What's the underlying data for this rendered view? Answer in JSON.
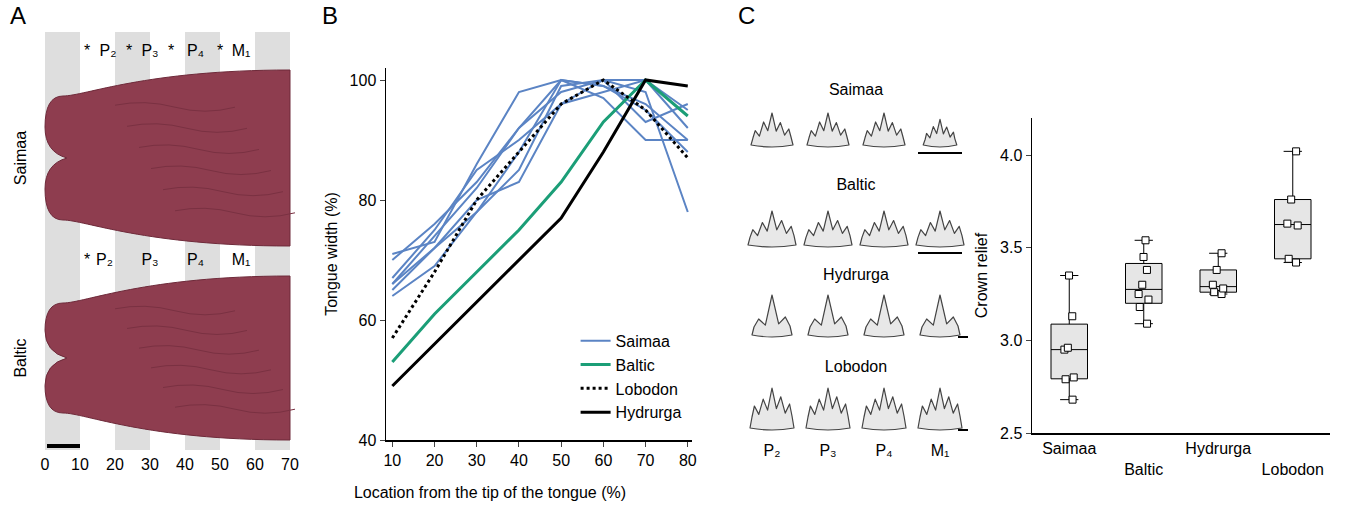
{
  "panel_a": {
    "panel": "A",
    "rows": [
      "Saimaa",
      "Baltic"
    ],
    "xlim": [
      0,
      70
    ],
    "xticks": [
      0,
      10,
      20,
      30,
      40,
      50,
      60,
      70
    ],
    "annotations": {
      "top": [
        {
          "text": "*",
          "x": 12
        },
        {
          "text": "P₂",
          "x": 18
        },
        {
          "text": "*",
          "x": 24
        },
        {
          "text": "P₃",
          "x": 30
        },
        {
          "text": "*",
          "x": 36
        },
        {
          "text": "P₄",
          "x": 43
        },
        {
          "text": "*",
          "x": 50
        },
        {
          "text": "M₁",
          "x": 56
        }
      ],
      "middle": [
        {
          "text": "*",
          "x": 12
        },
        {
          "text": "P₂",
          "x": 17
        },
        {
          "text": "P₃",
          "x": 30
        },
        {
          "text": "P₄",
          "x": 43
        },
        {
          "text": "M₁",
          "x": 56
        }
      ]
    }
  },
  "x_label": "Location from the tip of the tongue (%)",
  "chart_data": [
    {
      "panel": "B",
      "type": "line",
      "x": [
        10,
        20,
        30,
        40,
        50,
        60,
        70,
        80
      ],
      "xlim": [
        8.5,
        81
      ],
      "xticks": [
        10,
        20,
        30,
        40,
        50,
        60,
        70,
        80
      ],
      "ylim": [
        40,
        102
      ],
      "yticks": [
        40,
        60,
        80,
        100
      ],
      "ylabel": "Tongue width (%)",
      "grid": false,
      "legend": "bottom right",
      "series": [
        {
          "name": "Saimaa",
          "color": "#5b84c4",
          "line_style": "solid",
          "values": [
            71,
            73,
            86,
            98,
            100,
            99,
            96,
            90
          ]
        },
        {
          "name": "Saimaa",
          "color": "#5b84c4",
          "line_style": "solid",
          "values": [
            66,
            74,
            82,
            92,
            100,
            97,
            90,
            90
          ]
        },
        {
          "name": "Saimaa",
          "color": "#5b84c4",
          "line_style": "solid",
          "values": [
            64,
            69,
            78,
            85,
            99,
            100,
            98,
            78
          ]
        },
        {
          "name": "Saimaa",
          "color": "#5b84c4",
          "line_style": "solid",
          "values": [
            65,
            72,
            80,
            83,
            96,
            100,
            100,
            92
          ]
        },
        {
          "name": "Saimaa",
          "color": "#5b84c4",
          "line_style": "solid",
          "values": [
            67,
            75,
            85,
            90,
            96,
            98,
            100,
            95
          ]
        },
        {
          "name": "Saimaa",
          "color": "#5b84c4",
          "line_style": "solid",
          "values": [
            66,
            72,
            78,
            88,
            100,
            99,
            95,
            88
          ]
        },
        {
          "name": "Saimaa",
          "color": "#5b84c4",
          "line_style": "solid",
          "values": [
            70,
            76,
            83,
            92,
            98,
            100,
            93,
            96
          ]
        },
        {
          "name": "Baltic",
          "color": "#1b9e77",
          "line_style": "solid",
          "values": [
            53,
            61,
            68,
            75,
            83,
            93,
            100,
            94
          ]
        },
        {
          "name": "Lobodon",
          "color": "#000000",
          "line_style": "dotted",
          "values": [
            57,
            68,
            80,
            88,
            96,
            100,
            95,
            87
          ]
        },
        {
          "name": "Hydrurga",
          "color": "#000000",
          "line_style": "solid",
          "values": [
            49,
            56,
            63,
            70,
            77,
            88,
            100,
            99
          ]
        }
      ]
    },
    {
      "panel": "C",
      "type": "box",
      "categories": [
        "Saimaa",
        "Baltic",
        "Hydrurga",
        "Lobodon"
      ],
      "values": [
        [
          3.35,
          3.13,
          2.96,
          2.95,
          2.8,
          2.79,
          2.68
        ],
        [
          3.54,
          3.45,
          3.38,
          3.3,
          3.25,
          3.22,
          3.18,
          3.09
        ],
        [
          3.47,
          3.38,
          3.3,
          3.28,
          3.26,
          3.25
        ],
        [
          4.02,
          3.76,
          3.63,
          3.62,
          3.44,
          3.42
        ]
      ],
      "ylim": [
        2.5,
        4.2
      ],
      "yticks": [
        2.5,
        {
          "value": 3,
          "label": "3.0"
        },
        3.5,
        {
          "value": 4,
          "label": "4.0"
        }
      ],
      "ylabel": "Crown relief",
      "grid": false,
      "color": "#e6e6e6"
    }
  ],
  "teeth": {
    "rows": [
      "Saimaa",
      "Baltic",
      "Hydrurga",
      "Lobodon"
    ],
    "columns": [
      "P₂",
      "P₃",
      "P₄",
      "M₁"
    ]
  }
}
